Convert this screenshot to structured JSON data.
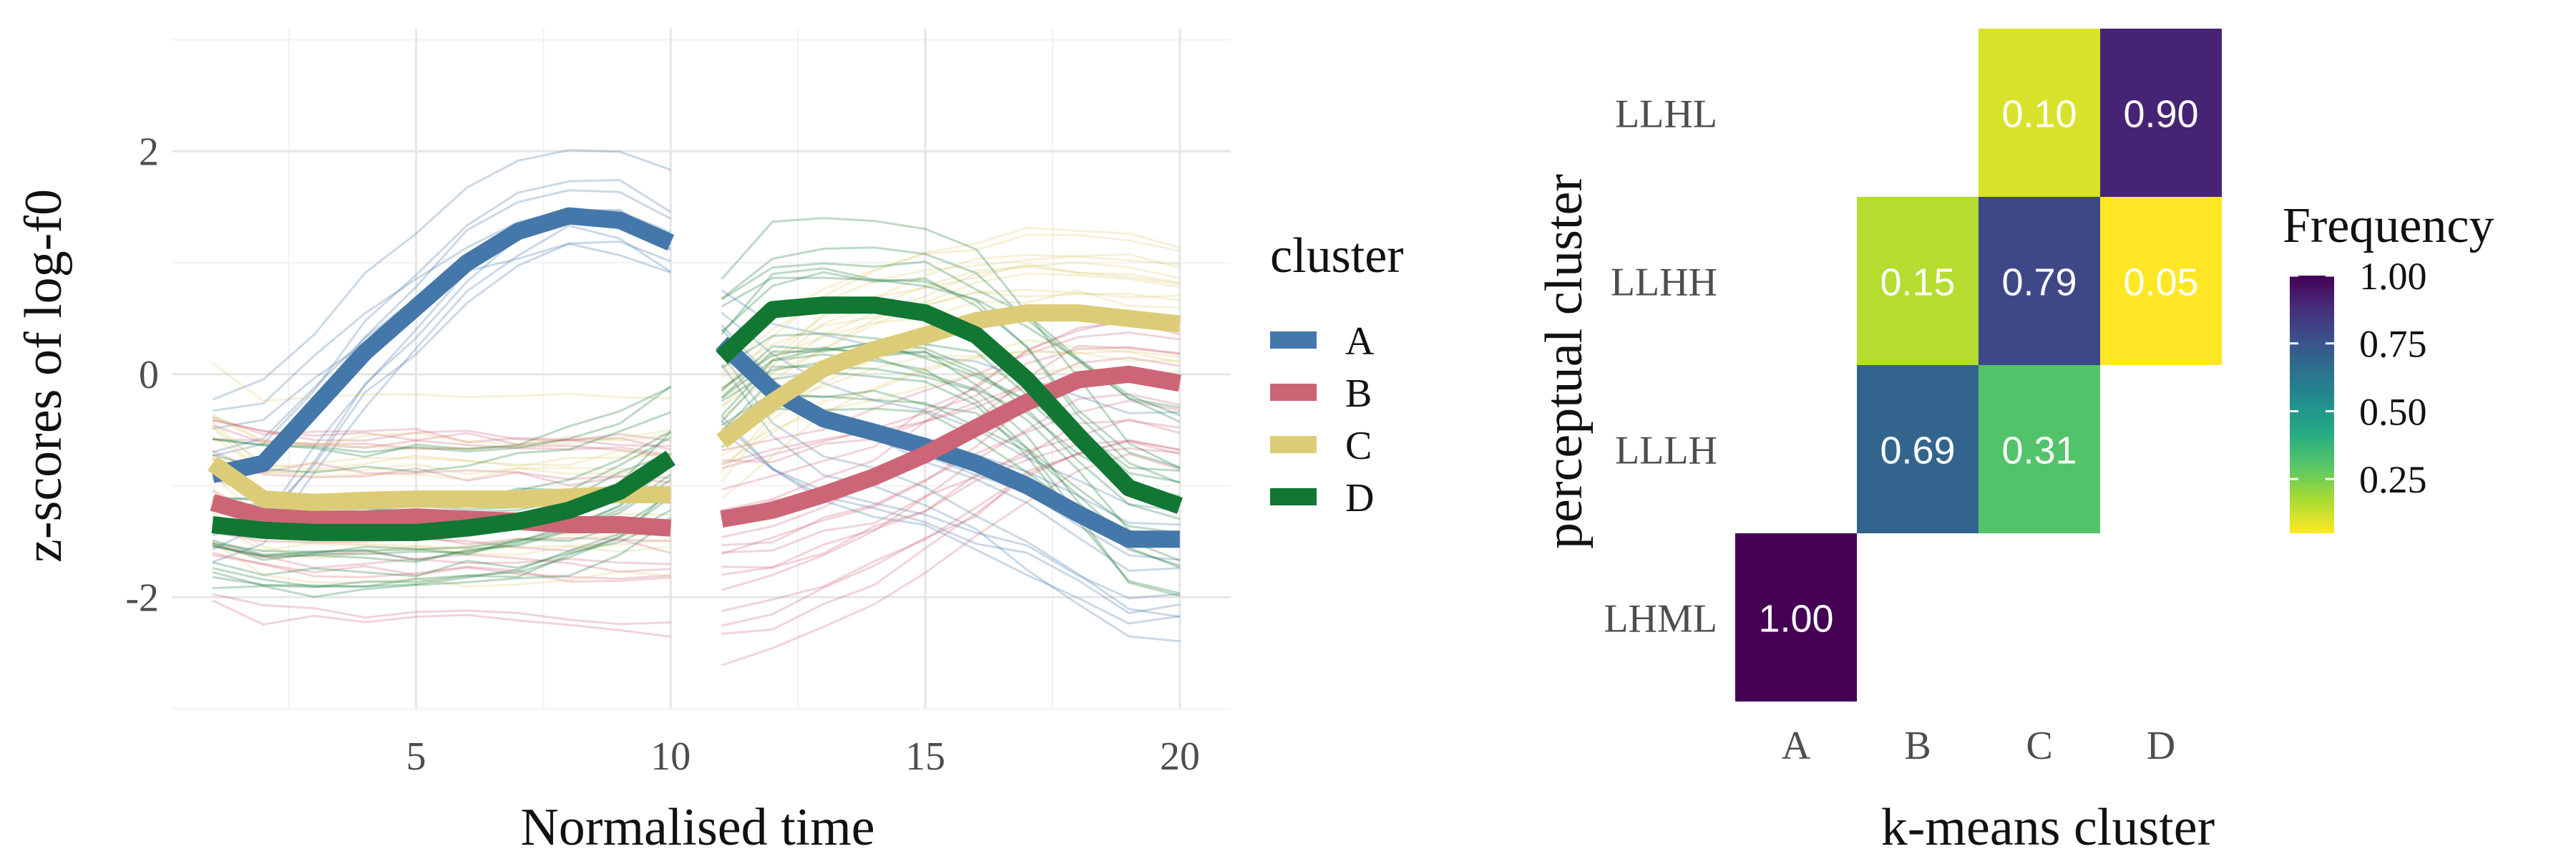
{
  "chart_data": [
    {
      "type": "line",
      "xlabel": "Normalised time",
      "ylabel": "z-scores of log-f0",
      "xlim": [
        0.2,
        21.0
      ],
      "ylim": [
        -3.0,
        3.1
      ],
      "x_ticks": [
        5,
        10,
        15,
        20
      ],
      "x_tick_labels": [
        "5",
        "10",
        "15",
        "20"
      ],
      "y_ticks": [
        -2,
        0,
        2
      ],
      "y_tick_labels": [
        "-2",
        "0",
        "2"
      ],
      "grid": true,
      "legend": {
        "title": "cluster",
        "position": "right",
        "entries": [
          "A",
          "B",
          "C",
          "D"
        ]
      },
      "colors": {
        "A": "#4477aa",
        "B": "#cc6677",
        "C": "#ddcc77",
        "D": "#117733"
      },
      "series": [
        {
          "name": "A",
          "x": [
            1,
            2,
            3,
            4,
            5,
            6,
            7,
            8,
            9,
            10,
            11,
            12,
            13,
            14,
            15,
            16,
            17,
            18,
            19,
            20
          ],
          "y": [
            -0.9,
            -0.8,
            -0.3,
            0.2,
            0.6,
            1.0,
            1.28,
            1.42,
            1.38,
            1.18,
            0.28,
            -0.15,
            -0.4,
            -0.52,
            -0.65,
            -0.8,
            -1.0,
            -1.25,
            -1.48,
            -1.48
          ]
        },
        {
          "name": "B",
          "x": [
            1,
            2,
            3,
            4,
            5,
            6,
            7,
            8,
            9,
            10,
            11,
            12,
            13,
            14,
            15,
            16,
            17,
            18,
            19,
            20
          ],
          "y": [
            -1.15,
            -1.28,
            -1.3,
            -1.3,
            -1.28,
            -1.3,
            -1.32,
            -1.35,
            -1.35,
            -1.38,
            -1.3,
            -1.22,
            -1.08,
            -0.92,
            -0.72,
            -0.48,
            -0.25,
            -0.05,
            0.0,
            -0.08
          ]
        },
        {
          "name": "C",
          "x": [
            1,
            2,
            3,
            4,
            5,
            6,
            7,
            8,
            9,
            10,
            11,
            12,
            13,
            14,
            15,
            16,
            17,
            18,
            19,
            20
          ],
          "y": [
            -0.8,
            -1.12,
            -1.15,
            -1.13,
            -1.12,
            -1.12,
            -1.12,
            -1.1,
            -1.08,
            -1.08,
            -0.6,
            -0.25,
            0.05,
            0.22,
            0.35,
            0.48,
            0.55,
            0.55,
            0.5,
            0.45
          ]
        },
        {
          "name": "D",
          "x": [
            1,
            2,
            3,
            4,
            5,
            6,
            7,
            8,
            9,
            10,
            11,
            12,
            13,
            14,
            15,
            16,
            17,
            18,
            19,
            20
          ],
          "y": [
            -1.35,
            -1.4,
            -1.42,
            -1.42,
            -1.42,
            -1.38,
            -1.32,
            -1.22,
            -1.05,
            -0.75,
            0.15,
            0.58,
            0.62,
            0.62,
            0.55,
            0.35,
            -0.05,
            -0.55,
            -1.02,
            -1.18
          ]
        }
      ]
    },
    {
      "type": "heatmap",
      "xlabel": "k-means cluster",
      "ylabel": "perceptual cluster",
      "x_categories": [
        "A",
        "B",
        "C",
        "D"
      ],
      "y_categories": [
        "LHML",
        "LLLH",
        "LLHH",
        "LLHL"
      ],
      "legend": {
        "title": "Frequency",
        "position": "right",
        "ticks": [
          0.25,
          0.5,
          0.75,
          1.0
        ],
        "tick_labels": [
          "0.25",
          "0.50",
          "0.75",
          "1.00"
        ],
        "range": [
          0.05,
          1.0
        ]
      },
      "cells": [
        {
          "x": "A",
          "y": "LHML",
          "value": 1.0,
          "label": "1.00"
        },
        {
          "x": "B",
          "y": "LLLH",
          "value": 0.69,
          "label": "0.69"
        },
        {
          "x": "C",
          "y": "LLLH",
          "value": 0.31,
          "label": "0.31"
        },
        {
          "x": "B",
          "y": "LLHH",
          "value": 0.15,
          "label": "0.15"
        },
        {
          "x": "C",
          "y": "LLHH",
          "value": 0.79,
          "label": "0.79"
        },
        {
          "x": "D",
          "y": "LLHH",
          "value": 0.05,
          "label": "0.05"
        },
        {
          "x": "C",
          "y": "LLHL",
          "value": 0.1,
          "label": "0.10"
        },
        {
          "x": "D",
          "y": "LLHL",
          "value": 0.9,
          "label": "0.90"
        }
      ]
    }
  ]
}
